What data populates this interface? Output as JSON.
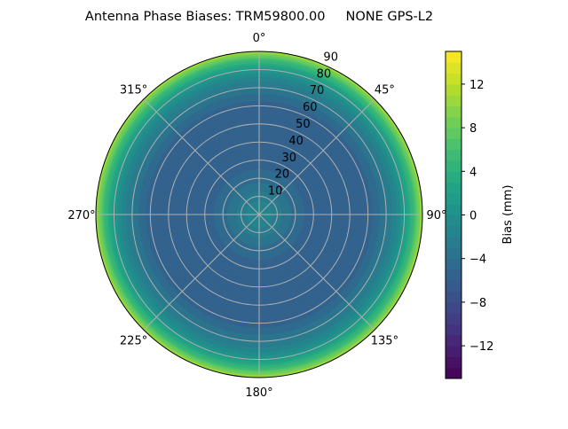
{
  "chart_data": {
    "type": "polar-contour",
    "title": "Antenna Phase Biases: TRM59800.00     NONE GPS-L2",
    "angular_ticks": [
      "0°",
      "45°",
      "90°",
      "135°",
      "180°",
      "225°",
      "270°",
      "315°"
    ],
    "angular_tick_values": [
      0,
      45,
      90,
      135,
      180,
      225,
      270,
      315
    ],
    "radial_ticks": [
      "10",
      "20",
      "30",
      "40",
      "50",
      "60",
      "70",
      "80",
      "90"
    ],
    "radial_tick_values": [
      10,
      20,
      30,
      40,
      50,
      60,
      70,
      80,
      90
    ],
    "radial_range": [
      0,
      90
    ],
    "grid": true,
    "colormap": "viridis",
    "colorbar": {
      "label": "Bias (mm)",
      "range": [
        -15,
        15
      ],
      "levels_step": 1,
      "ticks": [
        "12",
        "8",
        "4",
        "0",
        "−4",
        "−8",
        "−12"
      ],
      "tick_values": [
        12,
        8,
        4,
        0,
        -4,
        -8,
        -12
      ],
      "placement": "right"
    },
    "radial_profile": {
      "zenith": [
        0,
        5,
        10,
        15,
        20,
        30,
        40,
        50,
        60,
        65,
        70,
        75,
        80,
        85,
        90
      ],
      "bias_mm": [
        -1,
        -1.5,
        -2.5,
        -3.5,
        -4.5,
        -5.5,
        -6,
        -6,
        -5.5,
        -4.5,
        -3,
        -1.5,
        1,
        5,
        11
      ]
    }
  }
}
